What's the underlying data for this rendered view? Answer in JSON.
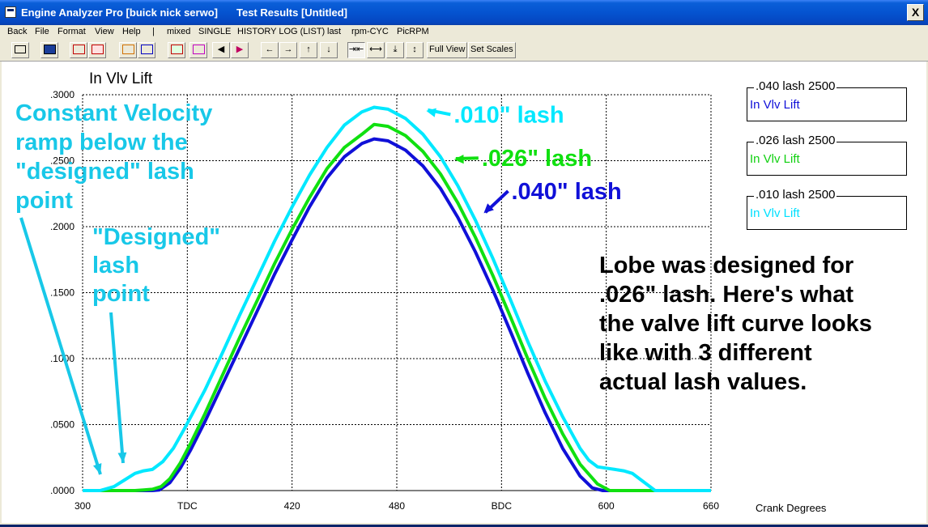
{
  "window": {
    "app_title": "Engine Analyzer Pro [buick nick serwo]",
    "doc_title": "Test Results [Untitled]",
    "close_glyph": "X"
  },
  "menu": [
    "Back",
    "File",
    "Format",
    "View",
    "Help",
    "|",
    "mixed",
    "SINGLE",
    "HISTORY LOG (LIST)",
    "last",
    "rpm-CYC",
    "PicRPM"
  ],
  "toolbar": {
    "buttons": [
      "print-icon",
      "save-icon",
      "graph-red-icon",
      "graph-red-2-icon",
      "graph-orange-icon",
      "graph-blue-icon",
      "graph-mixed-icon",
      "graph-mixed-2-icon",
      "arrow-left-pink-icon",
      "arrow-right-pink-icon",
      "arrow-left-icon",
      "arrow-right-icon",
      "arrow-up-icon",
      "arrow-down-icon",
      "shrink-horizontal-icon",
      "expand-horizontal-icon",
      "shrink-vertical-icon",
      "expand-vertical-icon"
    ],
    "full_view": "Full View",
    "set_scales": "Set Scales"
  },
  "chart_data": {
    "type": "line",
    "title": "In Vlv Lift",
    "xlabel": "Crank Degrees",
    "ylabel": "",
    "xlim": [
      300,
      660
    ],
    "ylim": [
      0,
      0.3
    ],
    "x_ticks": [
      {
        "value": 300,
        "label": "300"
      },
      {
        "value": 360,
        "label": "TDC"
      },
      {
        "value": 420,
        "label": "420"
      },
      {
        "value": 480,
        "label": "480"
      },
      {
        "value": 540,
        "label": "BDC"
      },
      {
        "value": 600,
        "label": "600"
      },
      {
        "value": 660,
        "label": "660"
      }
    ],
    "y_ticks": [
      {
        "value": 0,
        "label": ".0000"
      },
      {
        "value": 0.05,
        "label": ".0500"
      },
      {
        "value": 0.1,
        "label": ".1000"
      },
      {
        "value": 0.15,
        "label": ".1500"
      },
      {
        "value": 0.2,
        "label": ".2000"
      },
      {
        "value": 0.25,
        "label": ".2500"
      },
      {
        "value": 0.3,
        "label": ".3000"
      }
    ],
    "grid": true,
    "series": [
      {
        "legend": ".040 lash  2500",
        "name": "In Vlv Lift",
        "color": "#1010d8",
        "x": [
          300,
          340,
          344,
          350,
          356,
          362,
          370,
          380,
          390,
          400,
          410,
          420,
          430,
          440,
          450,
          460,
          467,
          475,
          485,
          495,
          505,
          515,
          525,
          535,
          545,
          555,
          565,
          575,
          585,
          592,
          598,
          610,
          660
        ],
        "y": [
          0,
          0,
          0.0005,
          0.006,
          0.017,
          0.031,
          0.052,
          0.08,
          0.108,
          0.136,
          0.164,
          0.19,
          0.215,
          0.237,
          0.253,
          0.263,
          0.2665,
          0.265,
          0.258,
          0.246,
          0.229,
          0.207,
          0.181,
          0.152,
          0.121,
          0.089,
          0.059,
          0.032,
          0.011,
          0.002,
          0,
          0,
          0
        ]
      },
      {
        "legend": ".026 lash 2500",
        "name": "In Vlv Lift",
        "color": "#10e010",
        "x": [
          300,
          330,
          335,
          340,
          345,
          350,
          356,
          362,
          370,
          380,
          390,
          400,
          410,
          420,
          430,
          440,
          450,
          460,
          467,
          475,
          485,
          495,
          505,
          515,
          525,
          535,
          545,
          555,
          565,
          575,
          585,
          595,
          602,
          610,
          660
        ],
        "y": [
          0,
          0,
          0.0005,
          0.001,
          0.003,
          0.009,
          0.021,
          0.036,
          0.058,
          0.087,
          0.116,
          0.144,
          0.172,
          0.198,
          0.222,
          0.244,
          0.26,
          0.27,
          0.2775,
          0.276,
          0.269,
          0.257,
          0.24,
          0.218,
          0.192,
          0.163,
          0.132,
          0.1,
          0.07,
          0.043,
          0.02,
          0.005,
          0,
          0,
          0
        ]
      },
      {
        "legend": ".010 lash 2500",
        "name": "In Vlv Lift",
        "color": "#00e8ff",
        "x": [
          300,
          310,
          318,
          324,
          330,
          335,
          340,
          346,
          352,
          358,
          364,
          370,
          380,
          390,
          400,
          410,
          420,
          430,
          440,
          450,
          460,
          467,
          475,
          485,
          495,
          505,
          515,
          525,
          535,
          545,
          555,
          565,
          575,
          585,
          590,
          595,
          600,
          605,
          610,
          615,
          620,
          625,
          628,
          660
        ],
        "y": [
          0,
          0,
          0.003,
          0.008,
          0.013,
          0.015,
          0.016,
          0.022,
          0.032,
          0.046,
          0.061,
          0.076,
          0.104,
          0.133,
          0.161,
          0.189,
          0.215,
          0.239,
          0.26,
          0.277,
          0.287,
          0.2905,
          0.289,
          0.282,
          0.27,
          0.253,
          0.231,
          0.205,
          0.176,
          0.145,
          0.113,
          0.083,
          0.056,
          0.032,
          0.023,
          0.018,
          0.017,
          0.016,
          0.015,
          0.013,
          0.008,
          0.003,
          0,
          0
        ]
      }
    ],
    "annotations": [
      {
        "text": ".010\" lash",
        "color": "#00e8ff",
        "x": 495,
        "y": 0.2866,
        "tx": 0.285
      },
      {
        "text": ".026\" lash",
        "color": "#10e010",
        "x": 511,
        "y": 0.2497,
        "tx": 0.252
      },
      {
        "text": ".040\" lash",
        "color": "#1010d8",
        "x": 528,
        "y": 0.209,
        "tx": 0.227
      }
    ]
  },
  "notes": {
    "cv_ramp": [
      "Constant Velocity",
      "ramp below the",
      "\"designed\" lash",
      "point"
    ],
    "designed_lash": [
      "\"Designed\"",
      "lash",
      "point"
    ],
    "explanation": [
      "Lobe was designed for",
      ".026\" lash.  Here's what",
      "the valve lift curve looks",
      "like with 3 different",
      "actual lash values."
    ],
    "cv_color": "#18c8e8",
    "text_color": "#000000"
  }
}
